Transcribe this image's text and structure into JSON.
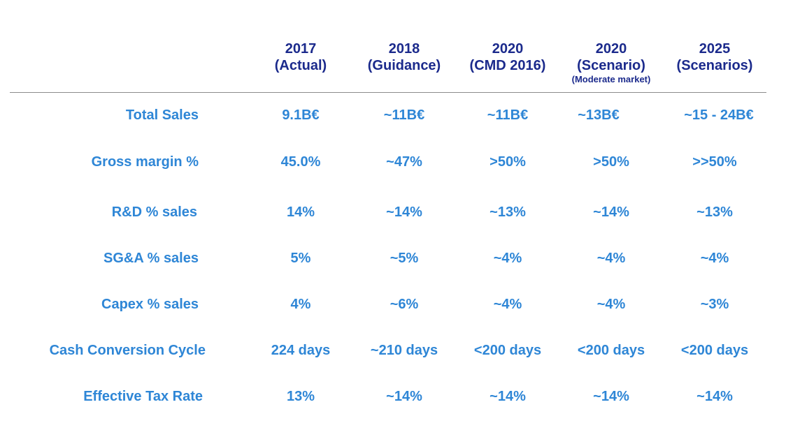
{
  "table": {
    "columns": [
      {
        "year": "2017",
        "label": "(Actual)",
        "note": ""
      },
      {
        "year": "2018",
        "label": "(Guidance)",
        "note": ""
      },
      {
        "year": "2020",
        "label": "(CMD 2016)",
        "note": ""
      },
      {
        "year": "2020",
        "label": "(Scenario)",
        "note": "(Moderate market)"
      },
      {
        "year": "2025",
        "label": "(Scenarios)",
        "note": ""
      }
    ],
    "rows": [
      {
        "label": "Total Sales",
        "values": [
          "9.1B€",
          "~11B€",
          "~11B€",
          "~13B€",
          "~15 - 24B€"
        ]
      },
      {
        "label": "Gross margin %",
        "values": [
          "45.0%",
          "~47%",
          ">50%",
          ">50%",
          ">>50%"
        ]
      },
      {
        "label": "R&D % sales",
        "values": [
          "14%",
          "~14%",
          "~13%",
          "~14%",
          "~13%"
        ]
      },
      {
        "label": "SG&A % sales",
        "values": [
          "5%",
          "~5%",
          "~4%",
          "~4%",
          "~4%"
        ]
      },
      {
        "label": "Capex % sales",
        "values": [
          "4%",
          "~6%",
          "~4%",
          "~4%",
          "~3%"
        ]
      },
      {
        "label": "Cash Conversion Cycle",
        "values": [
          "224 days",
          "~210 days",
          "<200 days",
          "<200 days",
          "<200 days"
        ]
      },
      {
        "label": "Effective Tax Rate",
        "values": [
          "13%",
          "~14%",
          "~14%",
          "~14%",
          "~14%"
        ]
      }
    ]
  },
  "colors": {
    "header_text": "#1b2a8c",
    "body_text": "#2e86d6",
    "divider": "#8c8c8c",
    "background": "#ffffff"
  }
}
